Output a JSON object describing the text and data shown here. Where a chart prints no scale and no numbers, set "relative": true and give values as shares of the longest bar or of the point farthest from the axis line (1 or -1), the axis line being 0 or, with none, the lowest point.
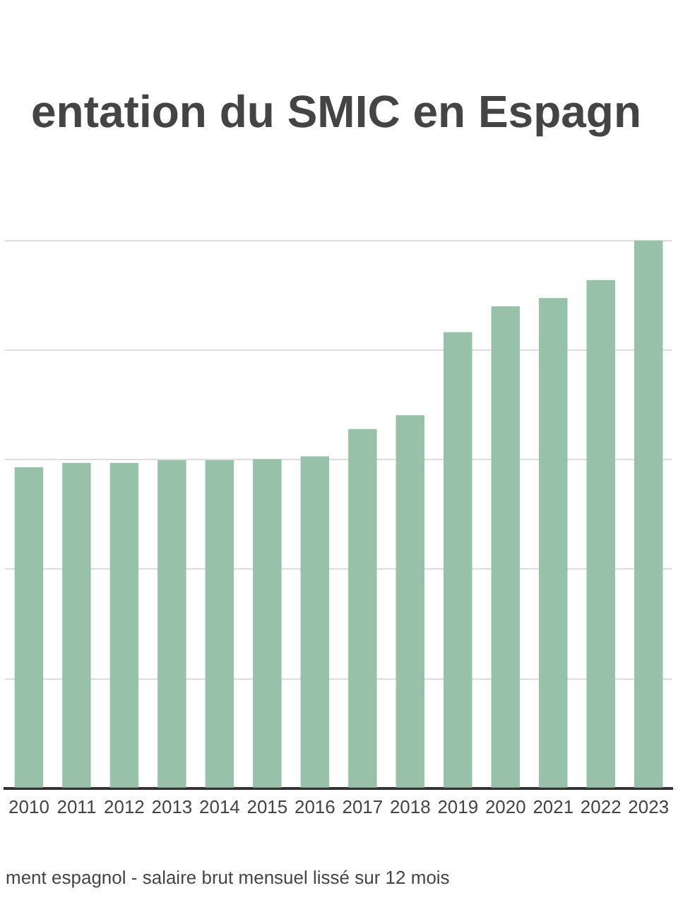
{
  "chart_data": {
    "type": "bar",
    "title": "entation du SMIC en Espagn",
    "annotations": [
      "ment espagnol - salaire brut mensuel lissé sur 12 mois"
    ],
    "categories": [
      "2010",
      "2011",
      "2012",
      "2013",
      "2014",
      "2015",
      "2016",
      "2017",
      "2018",
      "2019",
      "2020",
      "2021",
      "2022",
      "2023"
    ],
    "values": [
      0.586,
      0.594,
      0.594,
      0.599,
      0.599,
      0.601,
      0.606,
      0.656,
      0.681,
      0.833,
      0.88,
      0.895,
      0.928,
      1
    ],
    "color": "#98c1a9",
    "relative": true,
    "grid": "y",
    "legend": false
  }
}
